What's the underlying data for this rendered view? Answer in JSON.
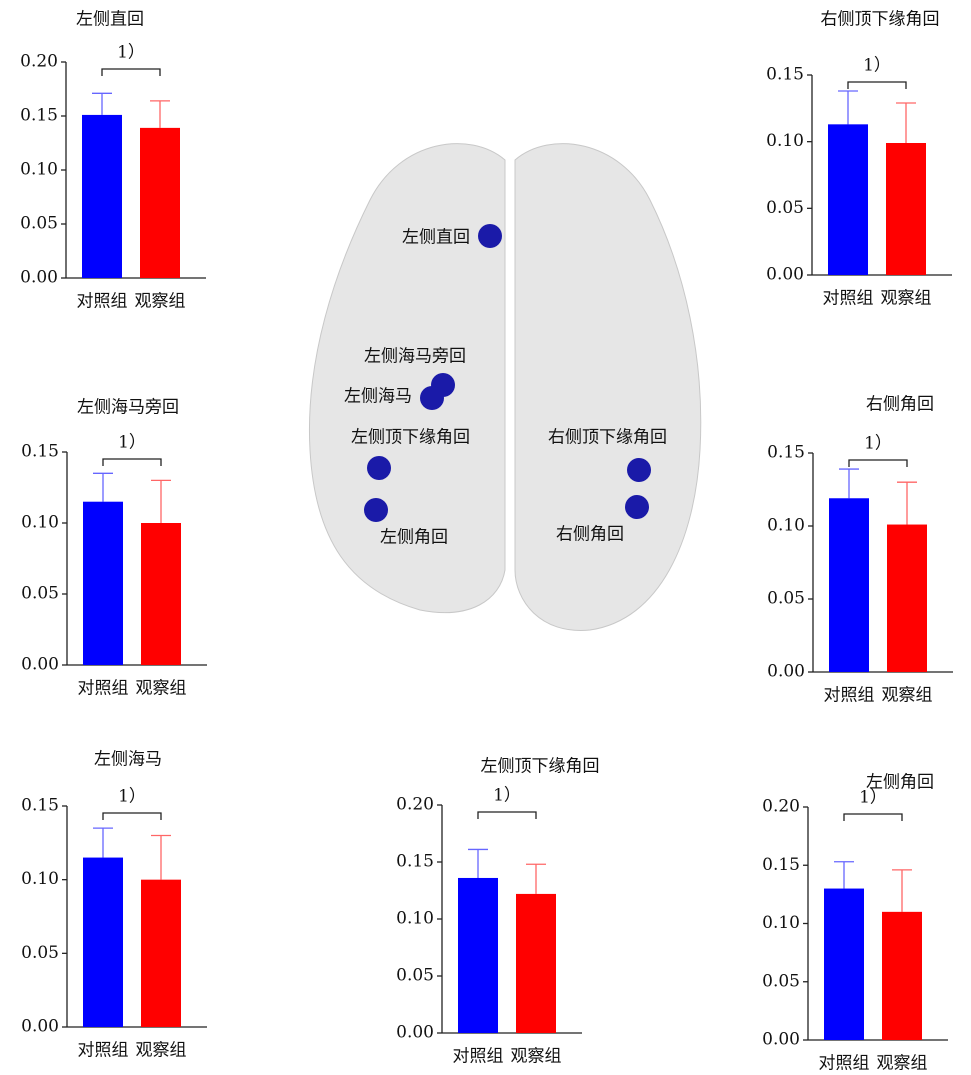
{
  "chart_data": [
    {
      "type": "bar",
      "title": "左侧直回",
      "categories": [
        "对照组",
        "观察组"
      ],
      "values": [
        0.151,
        0.139
      ],
      "errors": [
        0.02,
        0.025
      ],
      "colors": [
        "#0000ff",
        "#ff0000"
      ],
      "annotation": "1）",
      "ylim": [
        0,
        0.2
      ],
      "yticks": [
        {
          "value": 0,
          "label": "0.00"
        },
        {
          "value": 0.05,
          "label": "0.05"
        },
        {
          "value": 0.1,
          "label": "0.10"
        },
        {
          "value": 0.15,
          "label": "0.15"
        },
        {
          "value": 0.2,
          "label": "0.20"
        }
      ]
    },
    {
      "type": "bar",
      "title": "右侧顶下缘角回",
      "categories": [
        "对照组",
        "观察组"
      ],
      "values": [
        0.113,
        0.099
      ],
      "errors": [
        0.025,
        0.03
      ],
      "colors": [
        "#0000ff",
        "#ff0000"
      ],
      "annotation": "1）",
      "ylim": [
        0,
        0.15
      ],
      "yticks": [
        {
          "value": 0,
          "label": "0.00"
        },
        {
          "value": 0.05,
          "label": "0.05"
        },
        {
          "value": 0.1,
          "label": "0.10"
        },
        {
          "value": 0.15,
          "label": "0.15"
        }
      ]
    },
    {
      "type": "bar",
      "title": "左侧海马旁回",
      "categories": [
        "对照组",
        "观察组"
      ],
      "values": [
        0.115,
        0.1
      ],
      "errors": [
        0.02,
        0.03
      ],
      "colors": [
        "#0000ff",
        "#ff0000"
      ],
      "annotation": "1）",
      "ylim": [
        0,
        0.15
      ],
      "yticks": [
        {
          "value": 0,
          "label": "0.00"
        },
        {
          "value": 0.05,
          "label": "0.05"
        },
        {
          "value": 0.1,
          "label": "0.10"
        },
        {
          "value": 0.15,
          "label": "0.15"
        }
      ]
    },
    {
      "type": "bar",
      "title": "右侧角回",
      "categories": [
        "对照组",
        "观察组"
      ],
      "values": [
        0.119,
        0.101
      ],
      "errors": [
        0.02,
        0.029
      ],
      "colors": [
        "#0000ff",
        "#ff0000"
      ],
      "annotation": "1）",
      "ylim": [
        0,
        0.15
      ],
      "yticks": [
        {
          "value": 0,
          "label": "0.00"
        },
        {
          "value": 0.05,
          "label": "0.05"
        },
        {
          "value": 0.1,
          "label": "0.10"
        },
        {
          "value": 0.15,
          "label": "0.15"
        }
      ]
    },
    {
      "type": "bar",
      "title": "左侧海马",
      "categories": [
        "对照组",
        "观察组"
      ],
      "values": [
        0.115,
        0.1
      ],
      "errors": [
        0.02,
        0.03
      ],
      "colors": [
        "#0000ff",
        "#ff0000"
      ],
      "annotation": "1）",
      "ylim": [
        0,
        0.15
      ],
      "yticks": [
        {
          "value": 0,
          "label": "0.00"
        },
        {
          "value": 0.05,
          "label": "0.05"
        },
        {
          "value": 0.1,
          "label": "0.10"
        },
        {
          "value": 0.15,
          "label": "0.15"
        }
      ]
    },
    {
      "type": "bar",
      "title": "左侧顶下缘角回",
      "categories": [
        "对照组",
        "观察组"
      ],
      "values": [
        0.136,
        0.122
      ],
      "errors": [
        0.025,
        0.026
      ],
      "colors": [
        "#0000ff",
        "#ff0000"
      ],
      "annotation": "1）",
      "ylim": [
        0,
        0.2
      ],
      "yticks": [
        {
          "value": 0,
          "label": "0.00"
        },
        {
          "value": 0.05,
          "label": "0.05"
        },
        {
          "value": 0.1,
          "label": "0.10"
        },
        {
          "value": 0.15,
          "label": "0.15"
        },
        {
          "value": 0.2,
          "label": "0.20"
        }
      ]
    },
    {
      "type": "bar",
      "title": "左侧角回",
      "categories": [
        "对照组",
        "观察组"
      ],
      "values": [
        0.13,
        0.11
      ],
      "errors": [
        0.023,
        0.036
      ],
      "colors": [
        "#0000ff",
        "#ff0000"
      ],
      "annotation": "1）",
      "ylim": [
        0,
        0.2
      ],
      "yticks": [
        {
          "value": 0,
          "label": "0.00"
        },
        {
          "value": 0.05,
          "label": "0.05"
        },
        {
          "value": 0.1,
          "label": "0.10"
        },
        {
          "value": 0.15,
          "label": "0.15"
        },
        {
          "value": 0.2,
          "label": "0.20"
        }
      ]
    }
  ],
  "brain": {
    "labels": [
      "左侧直回",
      "左侧海马旁回",
      "左侧海马",
      "左侧顶下缘角回",
      "左侧角回",
      "右侧顶下缘角回",
      "右侧角回"
    ]
  }
}
